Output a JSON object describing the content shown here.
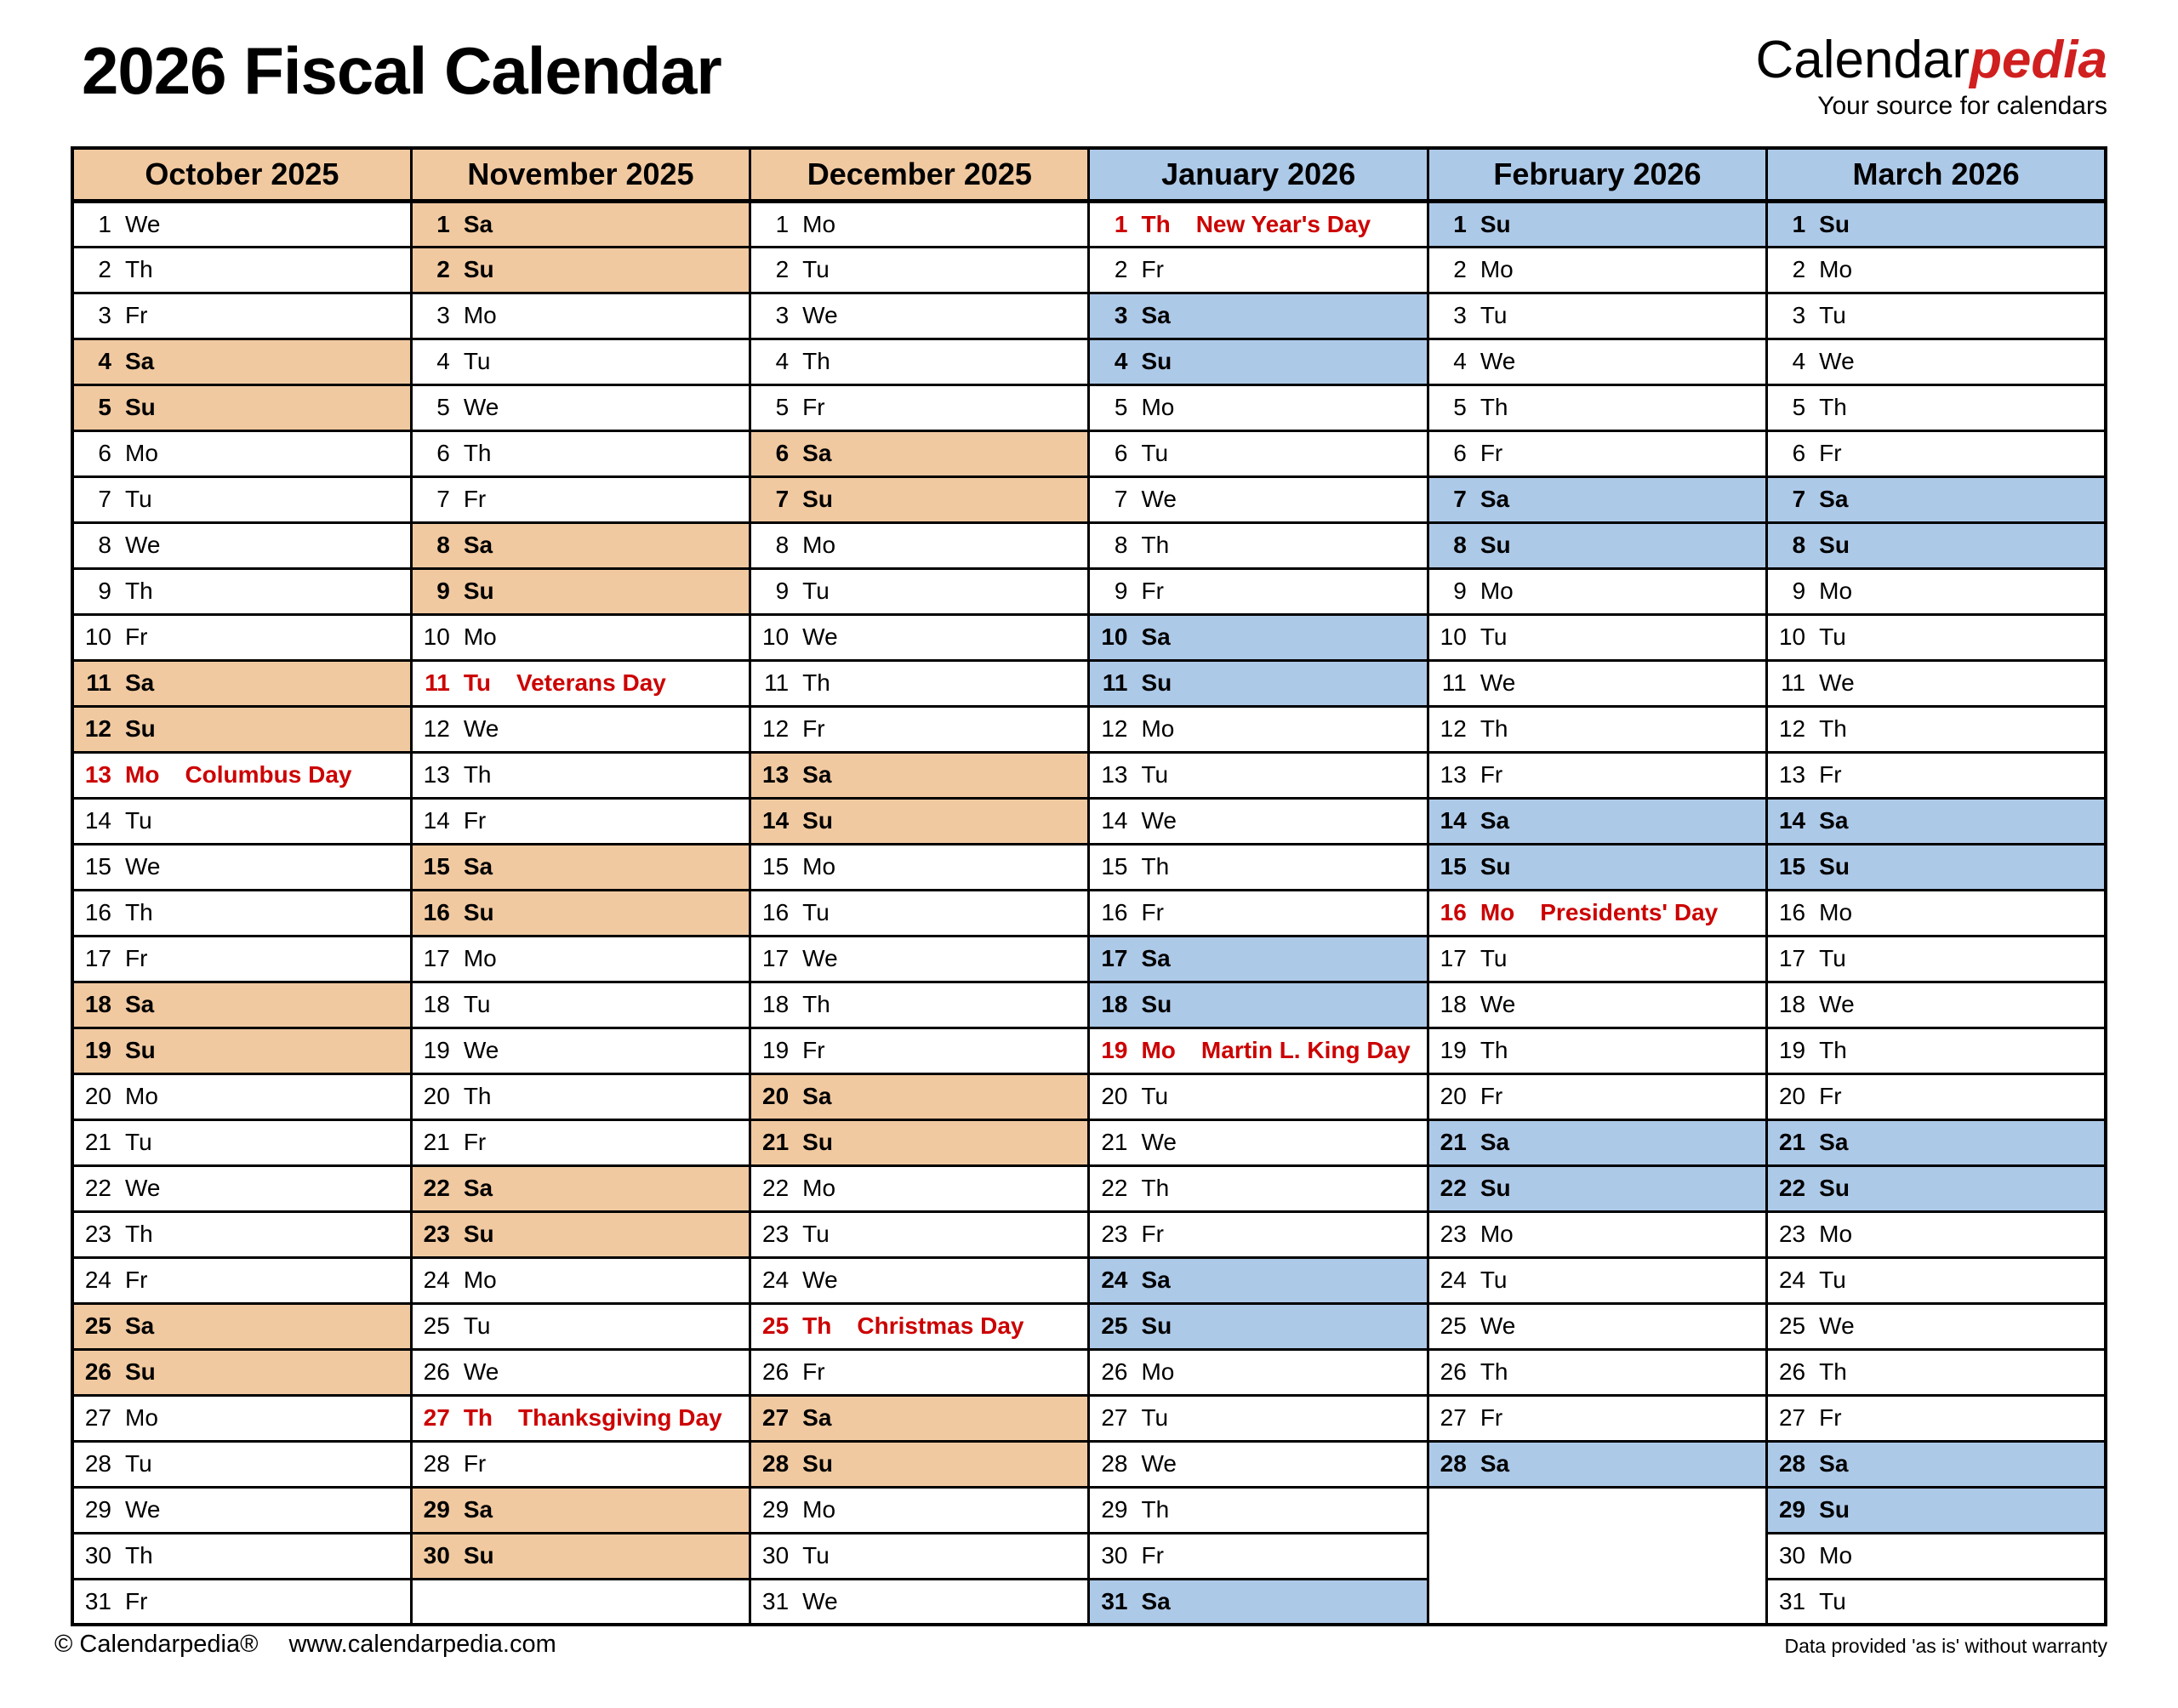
{
  "page": {
    "title": "2026 Fiscal Calendar"
  },
  "logo": {
    "brand_black": "Calendar",
    "brand_red": "pedia",
    "tagline": "Your source for calendars"
  },
  "footer": {
    "copyright": "© Calendarpedia®",
    "url": "www.calendarpedia.com",
    "disclaimer": "Data provided 'as is' without warranty"
  },
  "colors": {
    "weekend_orange": "#f1c9a0",
    "weekend_blue": "#adc9e8",
    "holiday_pink": "#fbd5d7",
    "holiday_red": "#cc0000",
    "empty_gray": "#e8e8e8",
    "border_black": "#000000",
    "brand_red": "#d01f1f"
  },
  "calendar": {
    "months": [
      {
        "name": "October 2025",
        "palette": "orange",
        "weekdays": [
          "We",
          "Th",
          "Fr",
          "Sa",
          "Su",
          "Mo",
          "Tu",
          "We",
          "Th",
          "Fr",
          "Sa",
          "Su",
          "Mo",
          "Tu",
          "We",
          "Th",
          "Fr",
          "Sa",
          "Su",
          "Mo",
          "Tu",
          "We",
          "Th",
          "Fr",
          "Sa",
          "Su",
          "Mo",
          "Tu",
          "We",
          "Th",
          "Fr"
        ],
        "holidays": {
          "13": "Columbus Day"
        }
      },
      {
        "name": "November 2025",
        "palette": "orange",
        "weekdays": [
          "Sa",
          "Su",
          "Mo",
          "Tu",
          "We",
          "Th",
          "Fr",
          "Sa",
          "Su",
          "Mo",
          "Tu",
          "We",
          "Th",
          "Fr",
          "Sa",
          "Su",
          "Mo",
          "Tu",
          "We",
          "Th",
          "Fr",
          "Sa",
          "Su",
          "Mo",
          "Tu",
          "We",
          "Th",
          "Fr",
          "Sa",
          "Su"
        ],
        "holidays": {
          "11": "Veterans Day",
          "27": "Thanksgiving Day"
        }
      },
      {
        "name": "December 2025",
        "palette": "orange",
        "weekdays": [
          "Mo",
          "Tu",
          "We",
          "Th",
          "Fr",
          "Sa",
          "Su",
          "Mo",
          "Tu",
          "We",
          "Th",
          "Fr",
          "Sa",
          "Su",
          "Mo",
          "Tu",
          "We",
          "Th",
          "Fr",
          "Sa",
          "Su",
          "Mo",
          "Tu",
          "We",
          "Th",
          "Fr",
          "Sa",
          "Su",
          "Mo",
          "Tu",
          "We"
        ],
        "holidays": {
          "25": "Christmas Day"
        }
      },
      {
        "name": "January 2026",
        "palette": "blue",
        "weekdays": [
          "Th",
          "Fr",
          "Sa",
          "Su",
          "Mo",
          "Tu",
          "We",
          "Th",
          "Fr",
          "Sa",
          "Su",
          "Mo",
          "Tu",
          "We",
          "Th",
          "Fr",
          "Sa",
          "Su",
          "Mo",
          "Tu",
          "We",
          "Th",
          "Fr",
          "Sa",
          "Su",
          "Mo",
          "Tu",
          "We",
          "Th",
          "Fr",
          "Sa"
        ],
        "holidays": {
          "1": "New Year's Day",
          "19": "Martin L. King Day"
        }
      },
      {
        "name": "February 2026",
        "palette": "blue",
        "weekdays": [
          "Su",
          "Mo",
          "Tu",
          "We",
          "Th",
          "Fr",
          "Sa",
          "Su",
          "Mo",
          "Tu",
          "We",
          "Th",
          "Fr",
          "Sa",
          "Su",
          "Mo",
          "Tu",
          "We",
          "Th",
          "Fr",
          "Sa",
          "Su",
          "Mo",
          "Tu",
          "We",
          "Th",
          "Fr",
          "Sa"
        ],
        "holidays": {
          "16": "Presidents' Day"
        }
      },
      {
        "name": "March 2026",
        "palette": "blue",
        "weekdays": [
          "Su",
          "Mo",
          "Tu",
          "We",
          "Th",
          "Fr",
          "Sa",
          "Su",
          "Mo",
          "Tu",
          "We",
          "Th",
          "Fr",
          "Sa",
          "Su",
          "Mo",
          "Tu",
          "We",
          "Th",
          "Fr",
          "Sa",
          "Su",
          "Mo",
          "Tu",
          "We",
          "Th",
          "Fr",
          "Sa",
          "Su",
          "Mo",
          "Tu"
        ],
        "holidays": {}
      }
    ]
  }
}
